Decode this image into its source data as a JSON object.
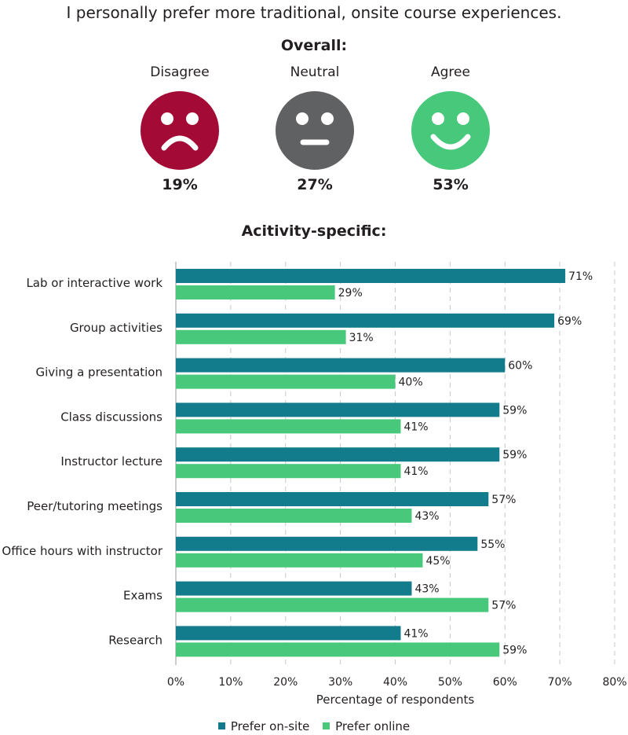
{
  "title": "I personally prefer more traditional, onsite course experiences.",
  "overall": {
    "heading": "Overall:",
    "items": [
      {
        "label": "Disagree",
        "value": "19%",
        "color": "#a30b36",
        "icon": "sad-face-icon"
      },
      {
        "label": "Neutral",
        "value": "27%",
        "color": "#606162",
        "icon": "neutral-face-icon"
      },
      {
        "label": "Agree",
        "value": "53%",
        "color": "#47c87a",
        "icon": "happy-face-icon"
      }
    ]
  },
  "activity_heading": "Acitivity-specific:",
  "chart_data": {
    "type": "bar",
    "orientation": "horizontal",
    "categories": [
      "Lab or interactive work",
      "Group activities",
      "Giving a presentation",
      "Class discussions",
      "Instructor lecture",
      "Peer/tutoring meetings",
      "Office hours with instructor",
      "Exams",
      "Research"
    ],
    "series": [
      {
        "name": "Prefer on-site",
        "color": "#127c8c",
        "values": [
          71,
          69,
          60,
          59,
          59,
          57,
          55,
          43,
          41
        ]
      },
      {
        "name": "Prefer online",
        "color": "#47c87a",
        "values": [
          29,
          31,
          40,
          41,
          41,
          43,
          45,
          57,
          59
        ]
      }
    ],
    "xlabel": "Percentage of respondents",
    "xlim": [
      0,
      80
    ],
    "xticks": [
      "0%",
      "10%",
      "20%",
      "30%",
      "40%",
      "50%",
      "60%",
      "70%",
      "80%"
    ],
    "value_suffix": "%",
    "grid": "vertical-dashed",
    "legend": "bottom-center"
  }
}
